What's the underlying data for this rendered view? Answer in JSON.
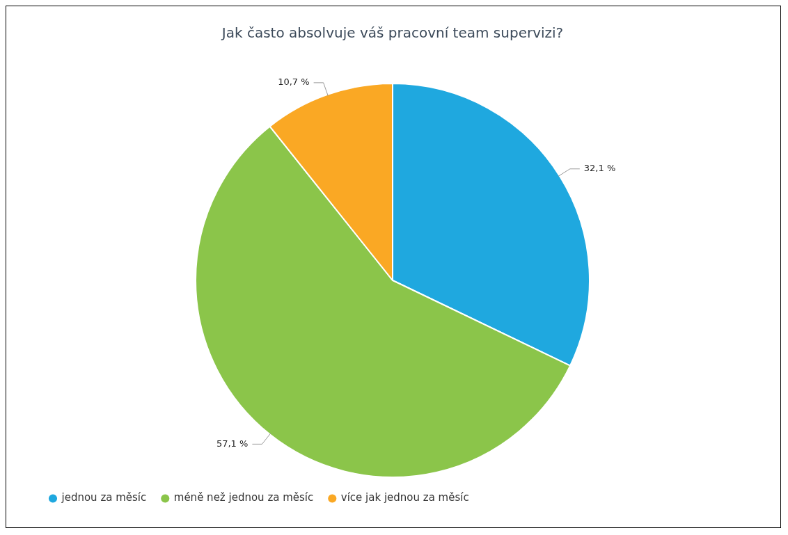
{
  "chart_data": {
    "type": "pie",
    "title": "Jak často absolvuje váš pracovní team supervizi?",
    "categories": [
      "jednou za měsíc",
      "méně než jednou za měsíc",
      "více jak jednou za měsíc"
    ],
    "values": [
      32.1,
      57.1,
      10.7
    ],
    "colors": [
      "#1fa8df",
      "#8bc54a",
      "#faa824"
    ],
    "value_labels": [
      "32,1 %",
      "57,1 %",
      "10,7 %"
    ],
    "legend": "bottom left"
  }
}
